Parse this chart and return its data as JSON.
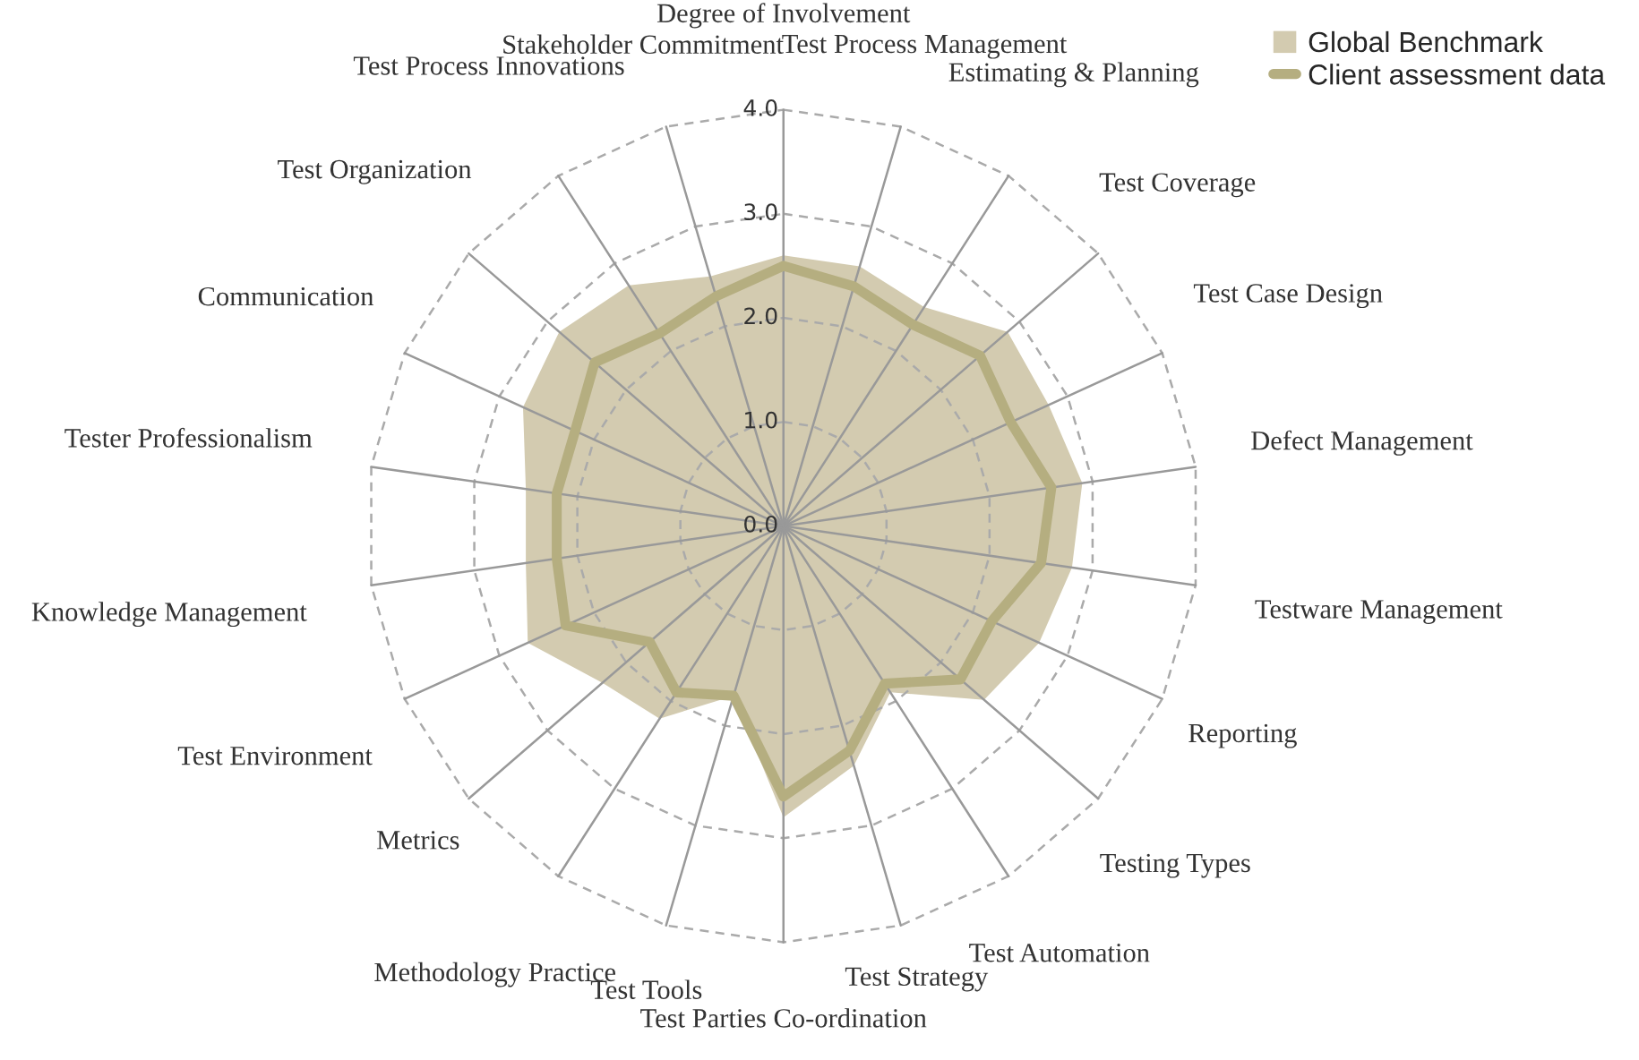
{
  "chart_data": {
    "type": "radar",
    "categories": [
      "Degree of Involvement",
      "Test Process Management",
      "Estimating & Planning",
      "Test Coverage",
      "Test Case Design",
      "Defect Management",
      "Testware Management",
      "Reporting",
      "Testing Types",
      "Test Automation",
      "Test Strategy",
      "Test Parties Co-ordination",
      "Test Tools",
      "Methodology Practice",
      "Metrics",
      "Test Environment",
      "Knowledge Management",
      "Tester Professionalism",
      "Communication",
      "Test Organization",
      "Test Process Innovations",
      "Stakeholder Commitment"
    ],
    "series": [
      {
        "name": "Global Benchmark",
        "color": "#d3cbb0",
        "values": [
          2.6,
          2.6,
          2.5,
          2.85,
          2.8,
          2.9,
          2.8,
          2.7,
          2.55,
          1.9,
          2.4,
          2.8,
          1.7,
          2.2,
          2.3,
          2.7,
          2.5,
          2.5,
          2.75,
          2.85,
          2.75,
          2.5
        ]
      },
      {
        "name": "Client assessment data",
        "color": "#b5ae80",
        "values": [
          2.5,
          2.4,
          2.3,
          2.5,
          2.4,
          2.6,
          2.5,
          2.2,
          2.25,
          1.8,
          2.25,
          2.6,
          1.7,
          1.9,
          1.7,
          2.3,
          2.2,
          2.2,
          2.2,
          2.4,
          2.2,
          2.3
        ]
      }
    ],
    "ylim": [
      0,
      4
    ],
    "yticks": [
      {
        "value": 0,
        "label": "0.0"
      },
      {
        "value": 1,
        "label": "1.0"
      },
      {
        "value": 2,
        "label": "2.0"
      },
      {
        "value": 3,
        "label": "3.0"
      },
      {
        "value": 4,
        "label": "4.0"
      }
    ],
    "grid": true,
    "legend": "top right"
  }
}
